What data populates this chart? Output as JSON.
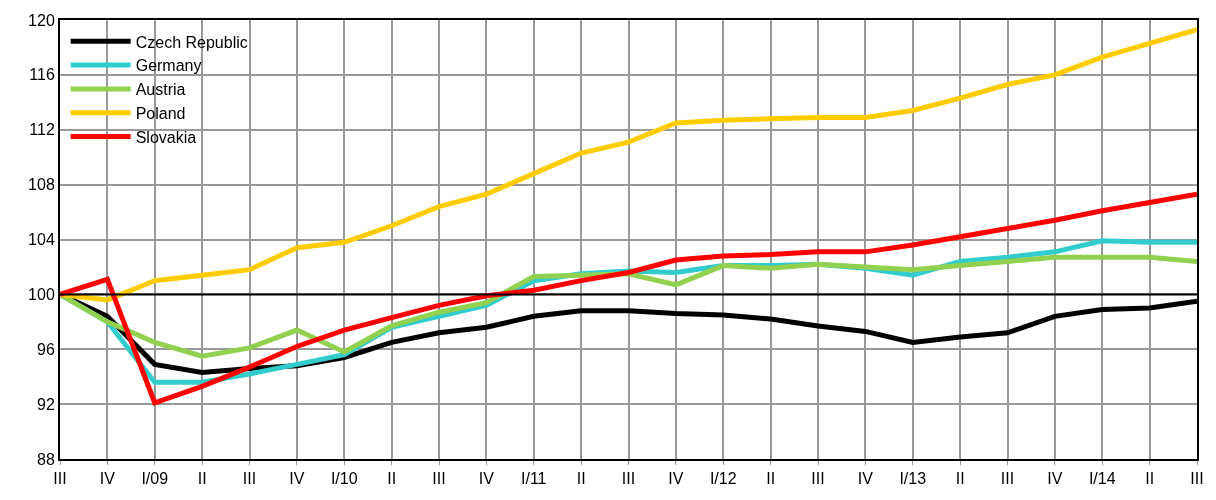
{
  "chart_data": {
    "type": "line",
    "categories": [
      "III",
      "IV",
      "I/09",
      "II",
      "III",
      "IV",
      "I/10",
      "II",
      "III",
      "IV",
      "I/11",
      "II",
      "III",
      "IV",
      "I/12",
      "II",
      "III",
      "IV",
      "I/13",
      "II",
      "III",
      "IV",
      "I/14",
      "II",
      "III"
    ],
    "series": [
      {
        "name": "Czech Republic",
        "color": "#000000",
        "values": [
          100,
          98.4,
          94.9,
          94.3,
          94.6,
          94.8,
          95.4,
          96.5,
          97.2,
          97.6,
          98.4,
          98.8,
          98.8,
          98.6,
          98.5,
          98.2,
          97.7,
          97.3,
          96.5,
          96.9,
          97.2,
          98.4,
          98.9,
          99.0,
          99.5
        ]
      },
      {
        "name": "Germany",
        "color": "#33cccc",
        "values": [
          100,
          98.0,
          93.6,
          93.6,
          94.2,
          94.9,
          95.6,
          97.6,
          98.4,
          99.2,
          101.0,
          101.5,
          101.7,
          101.6,
          102.1,
          102.1,
          102.2,
          101.9,
          101.4,
          102.4,
          102.7,
          103.1,
          103.9,
          103.8,
          103.8
        ]
      },
      {
        "name": "Austria",
        "color": "#92d050",
        "values": [
          100,
          98.0,
          96.5,
          95.5,
          96.1,
          97.4,
          95.8,
          97.7,
          98.7,
          99.4,
          101.3,
          101.4,
          101.5,
          100.7,
          102.1,
          101.9,
          102.2,
          102.0,
          101.8,
          102.1,
          102.4,
          102.7,
          102.7,
          102.7,
          102.4
        ]
      },
      {
        "name": "Poland",
        "color": "#ffcc00",
        "values": [
          100,
          99.6,
          101.0,
          101.4,
          101.8,
          103.4,
          103.8,
          105.0,
          106.4,
          107.3,
          108.8,
          110.3,
          111.1,
          112.5,
          112.7,
          112.8,
          112.9,
          112.9,
          113.4,
          114.3,
          115.3,
          116.0,
          117.3,
          118.3,
          119.3
        ]
      },
      {
        "name": "Slovakia",
        "color": "#ff0000",
        "values": [
          100,
          101.1,
          92.1,
          93.3,
          94.7,
          96.2,
          97.4,
          98.3,
          99.2,
          99.9,
          100.3,
          101.0,
          101.6,
          102.5,
          102.8,
          102.9,
          103.1,
          103.1,
          103.6,
          104.2,
          104.8,
          105.4,
          106.1,
          106.7,
          107.3
        ]
      }
    ],
    "ylim": [
      88,
      120
    ],
    "yticks": [
      88,
      92,
      96,
      100,
      104,
      108,
      112,
      116,
      120
    ],
    "ref_lines": [
      {
        "axis": "y",
        "value": 100,
        "color": "#000000"
      }
    ],
    "grid": true,
    "legend": "top left",
    "marker": "none",
    "line_style": "solid"
  }
}
